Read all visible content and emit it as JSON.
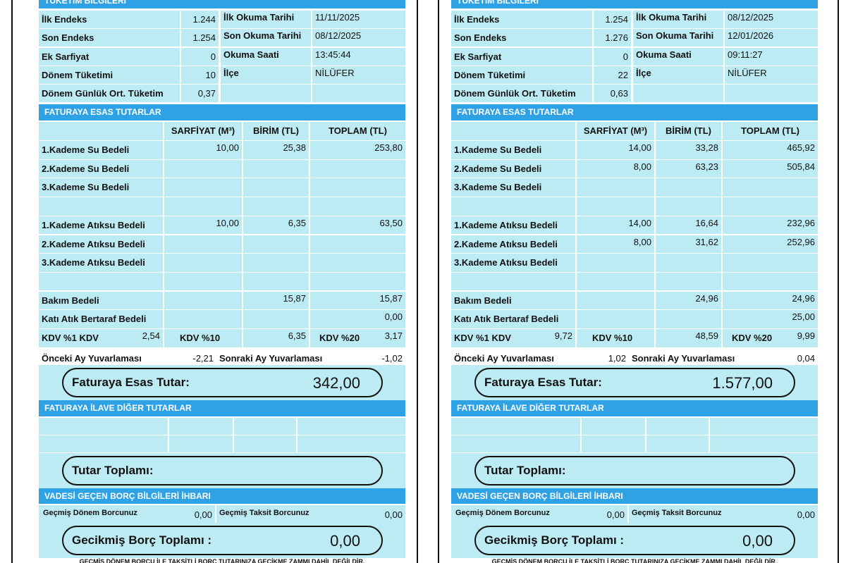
{
  "labels": {
    "section1": "TÜKETİM BİLGİLERİ",
    "info_left": [
      "İlk Endeks",
      "Son Endeks",
      "Ek Sarfiyat",
      "Dönem Tüketimi",
      "Dönem Günlük Ort. Tüketim"
    ],
    "info_right": [
      "İlk Okuma Tarihi",
      "Son Okuma Tarihi",
      "Okuma Saati",
      "İlçe"
    ],
    "section2": "FATURAYA ESAS TUTARLAR",
    "columns": [
      "SARFİYAT (M³)",
      "BİRİM (TL)",
      "TOPLAM (TL)"
    ],
    "rows": [
      "1.Kademe Su Bedeli",
      "2.Kademe Su Bedeli",
      "3.Kademe Su Bedeli",
      "1.Kademe Atıksu Bedeli",
      "2.Kademe Atıksu Bedeli",
      "3.Kademe Atıksu Bedeli",
      "Bakım Bedeli",
      "Katı Atık Bertaraf Bedeli"
    ],
    "kdv": [
      "KDV %1 KDV",
      "KDV %10",
      "KDV %20"
    ],
    "rounding": [
      "Önceki Ay Yuvarlaması",
      "Sonraki Ay Yuvarlaması"
    ],
    "base_total": "Faturaya Esas Tutar:",
    "section3": "FATURAYA İLAVE DİĞER TUTARLAR",
    "sum_total": "Tutar Toplamı:",
    "section4": "VADESİ GEÇEN BORÇ BİLGİLERİ İHBARI",
    "debt": [
      "Geçmiş Dönem Borcunuz",
      "Geçmiş Taksit Borcunuz"
    ],
    "debt_total": "Gecikmiş Borç Toplamı :",
    "footer": "GEÇMİŞ DÖNEM BORCU İLE TAKSİTLİ BORÇ TUTARINIZA GECİKME ZAMMI DAHİL DEĞİLDİR."
  },
  "bills": [
    {
      "info_left": [
        "1.244",
        "1.254",
        "0",
        "10",
        "0,37"
      ],
      "info_right": [
        "11/11/2025",
        "08/12/2025",
        "13:45:44",
        "NİLÜFER"
      ],
      "rows": [
        {
          "sarfiyat": "10,00",
          "birim": "25,38",
          "toplam": "253,80"
        },
        {},
        {},
        {
          "sarfiyat": "10,00",
          "birim": "6,35",
          "toplam": "63,50"
        },
        {},
        {},
        {
          "birim": "15,87",
          "toplam": "15,87"
        },
        {
          "toplam": "0,00"
        }
      ],
      "kdv": [
        "2,54",
        "6,35",
        "3,17"
      ],
      "rounding": [
        "-2,21",
        "-1,02"
      ],
      "base_total": "342,00",
      "debt": [
        "0,00",
        "0,00"
      ],
      "debt_total": "0,00"
    },
    {
      "info_left": [
        "1.254",
        "1.276",
        "0",
        "22",
        "0,63"
      ],
      "info_right": [
        "08/12/2025",
        "12/01/2026",
        "09:11:27",
        "NİLÜFER"
      ],
      "rows": [
        {
          "sarfiyat": "14,00",
          "birim": "33,28",
          "toplam": "465,92"
        },
        {
          "sarfiyat": "8,00",
          "birim": "63,23",
          "toplam": "505,84"
        },
        {},
        {
          "sarfiyat": "14,00",
          "birim": "16,64",
          "toplam": "232,96"
        },
        {
          "sarfiyat": "8,00",
          "birim": "31,62",
          "toplam": "252,96"
        },
        {},
        {
          "birim": "24,96",
          "toplam": "24,96"
        },
        {
          "toplam": "25,00"
        }
      ],
      "kdv": [
        "9,72",
        "48,59",
        "9,99"
      ],
      "rounding": [
        "1,02",
        "0,04"
      ],
      "base_total": "1.577,00",
      "debt": [
        "0,00",
        "0,00"
      ],
      "debt_total": "0,00"
    }
  ]
}
